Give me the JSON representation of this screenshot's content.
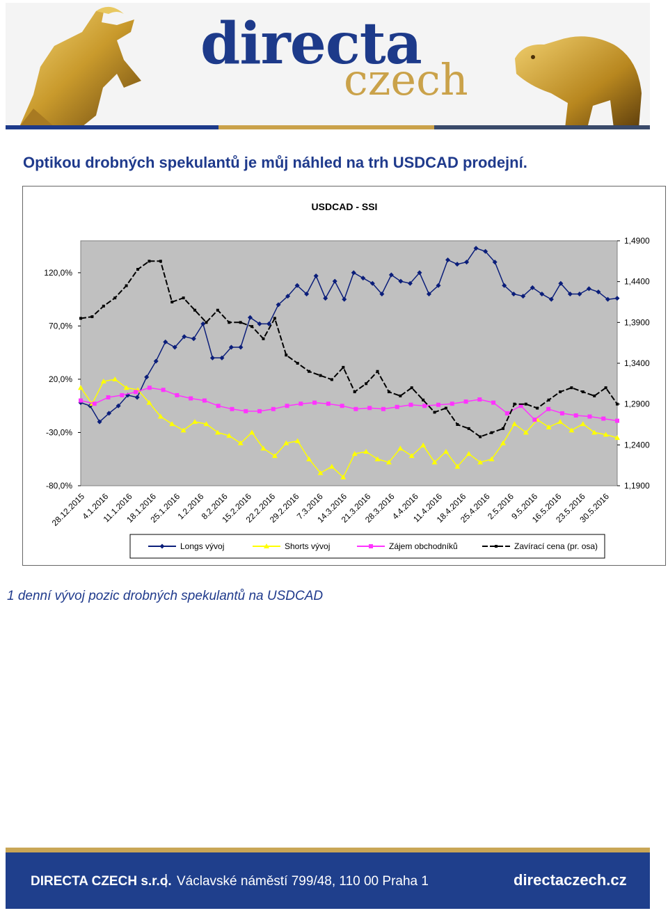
{
  "header": {
    "logo_main": "directa",
    "logo_sub": "czech",
    "colors": {
      "navy": "#1d3a8a",
      "gold": "#caa24a"
    },
    "icons": [
      "bull-statue-icon",
      "bear-statue-icon"
    ]
  },
  "headline": "Optikou drobných spekulantů je můj náhled na trh USDCAD prodejní.",
  "caption": "1 denní vývoj pozic drobných spekulantů na USDCAD",
  "footer": {
    "company": "DIRECTA CZECH s.r.o.",
    "separator": "|",
    "address": "Václavské náměstí 799/48, 110 00 Praha 1",
    "website": "directaczech.cz"
  },
  "chart_data": {
    "type": "line",
    "title": "USDCAD - SSI",
    "plot_background": "#c0c0c0",
    "grid": false,
    "legend_position": "bottom",
    "y_left": {
      "min": -80,
      "max": 150,
      "ticks": [
        -80,
        -30,
        20,
        70,
        120
      ],
      "tick_labels": [
        "-80,0%",
        "-30,0%",
        "20,0%",
        "70,0%",
        "120,0%"
      ]
    },
    "y_right": {
      "min": 1.19,
      "max": 1.49,
      "ticks": [
        1.19,
        1.24,
        1.29,
        1.34,
        1.39,
        1.44,
        1.49
      ],
      "tick_labels": [
        "1,1900",
        "1,2400",
        "1,2900",
        "1,3400",
        "1,3900",
        "1,4400",
        "1,4900"
      ]
    },
    "x_tick_labels": [
      "28.12.2015",
      "4.1.2016",
      "11.1.2016",
      "18.1.2016",
      "25.1.2016",
      "1.2.2016",
      "8.2.2016",
      "15.2.2016",
      "22.2.2016",
      "29.2.2016",
      "7.3.2016",
      "14.3.2016",
      "21.3.2016",
      "28.3.2016",
      "4.4.2016",
      "11.4.2016",
      "18.4.2016",
      "25.4.2016",
      "2.5.2016",
      "9.5.2016",
      "16.5.2016",
      "23.5.2016",
      "30.5.2016"
    ],
    "series": [
      {
        "name": "Longs vývoj",
        "axis": "left",
        "color": "#0b1e7a",
        "marker": "diamond",
        "values": [
          -2,
          -5,
          -20,
          -12,
          -5,
          5,
          3,
          22,
          37,
          55,
          50,
          60,
          58,
          72,
          40,
          40,
          50,
          50,
          78,
          72,
          72,
          90,
          98,
          108,
          100,
          117,
          96,
          112,
          95,
          120,
          115,
          110,
          100,
          118,
          112,
          110,
          120,
          100,
          108,
          132,
          128,
          130,
          143,
          140,
          130,
          108,
          100,
          98,
          106,
          100,
          95,
          110,
          100,
          100,
          105,
          102,
          95,
          96
        ]
      },
      {
        "name": "Shorts vývoj",
        "axis": "left",
        "color": "#ffff00",
        "marker": "triangle",
        "values": [
          12,
          -3,
          18,
          20,
          12,
          10,
          -2,
          -15,
          -22,
          -28,
          -20,
          -22,
          -30,
          -33,
          -40,
          -30,
          -45,
          -52,
          -40,
          -38,
          -55,
          -68,
          -62,
          -72,
          -50,
          -48,
          -55,
          -58,
          -45,
          -52,
          -42,
          -58,
          -48,
          -62,
          -50,
          -58,
          -55,
          -40,
          -22,
          -30,
          -18,
          -25,
          -20,
          -28,
          -22,
          -30,
          -32,
          -35
        ]
      },
      {
        "name": "Zájem obchodníků",
        "axis": "left",
        "color": "#ff33ff",
        "marker": "square",
        "values": [
          0,
          -3,
          3,
          5,
          8,
          12,
          10,
          5,
          2,
          0,
          -5,
          -8,
          -10,
          -10,
          -8,
          -5,
          -3,
          -2,
          -3,
          -5,
          -8,
          -7,
          -8,
          -6,
          -4,
          -5,
          -4,
          -3,
          -1,
          1,
          -2,
          -12,
          -5,
          -18,
          -8,
          -12,
          -14,
          -15,
          -17,
          -19
        ]
      },
      {
        "name": "Zavírací cena (pr. osa)",
        "axis": "right",
        "color": "#000000",
        "marker": "dash",
        "values": [
          1.395,
          1.397,
          1.41,
          1.42,
          1.435,
          1.455,
          1.465,
          1.465,
          1.415,
          1.42,
          1.405,
          1.39,
          1.405,
          1.39,
          1.39,
          1.385,
          1.37,
          1.395,
          1.35,
          1.34,
          1.33,
          1.325,
          1.32,
          1.335,
          1.305,
          1.315,
          1.33,
          1.305,
          1.3,
          1.31,
          1.295,
          1.28,
          1.285,
          1.265,
          1.26,
          1.25,
          1.255,
          1.26,
          1.29,
          1.29,
          1.285,
          1.295,
          1.305,
          1.31,
          1.305,
          1.3,
          1.31,
          1.29
        ]
      }
    ]
  }
}
